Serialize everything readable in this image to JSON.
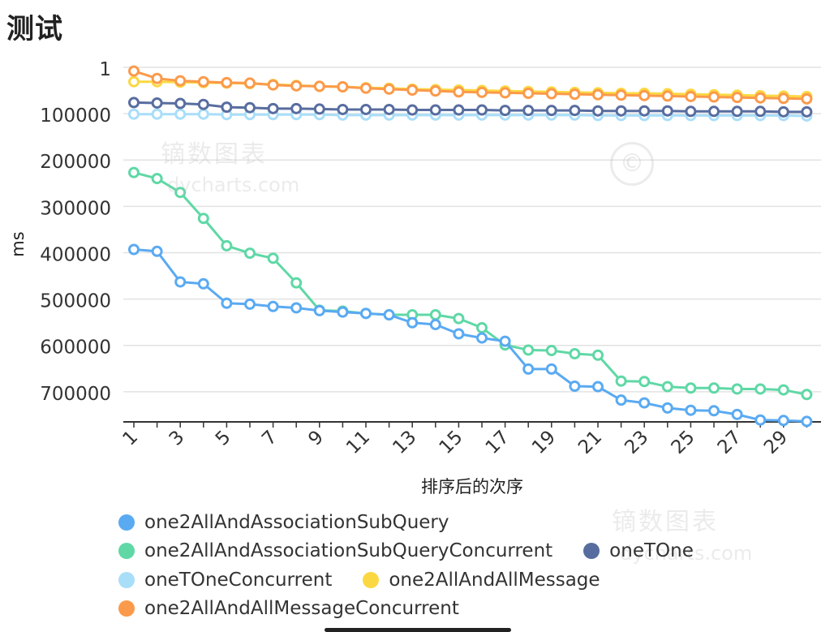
{
  "title": "测试",
  "watermark": {
    "text": "镝数图表",
    "sub": "dycharts.com",
    "copyright": "©"
  },
  "chart_data": {
    "type": "line",
    "title": "测试",
    "xlabel": "排序后的次序",
    "ylabel": "ms",
    "y_inverted": true,
    "ylim": [
      1,
      765000
    ],
    "yticks": [
      1,
      100000,
      200000,
      300000,
      400000,
      500000,
      600000,
      700000
    ],
    "ytick_labels": [
      "1",
      "100000",
      "200000",
      "300000",
      "400000",
      "500000",
      "600000",
      "700000"
    ],
    "x": [
      1,
      2,
      3,
      4,
      5,
      6,
      7,
      8,
      9,
      10,
      11,
      12,
      13,
      14,
      15,
      16,
      17,
      18,
      19,
      20,
      21,
      22,
      23,
      24,
      25,
      26,
      27,
      28,
      29,
      30
    ],
    "xtick_labels": [
      "1",
      "3",
      "5",
      "7",
      "9",
      "11",
      "13",
      "15",
      "17",
      "19",
      "21",
      "23",
      "25",
      "27",
      "29"
    ],
    "grid": true,
    "legend_position": "bottom-left",
    "series": [
      {
        "name": "one2AllAndAssociationSubQuery",
        "color": "#5aaaf2",
        "values": [
          393000,
          397000,
          463000,
          467000,
          509000,
          511000,
          516000,
          519000,
          525000,
          528000,
          531000,
          534000,
          551000,
          555000,
          575000,
          584000,
          591000,
          651000,
          651000,
          688000,
          689000,
          718000,
          724000,
          735000,
          740000,
          741000,
          749000,
          761000,
          762000,
          764000
        ]
      },
      {
        "name": "one2AllAndAssociationSubQueryConcurrent",
        "color": "#5fd8a6",
        "values": [
          227000,
          240000,
          270000,
          326000,
          385000,
          401000,
          412000,
          465000,
          524000,
          526000,
          531000,
          534000,
          534000,
          534000,
          542000,
          562000,
          599000,
          610000,
          611000,
          618000,
          621000,
          677000,
          678000,
          689000,
          692000,
          692000,
          694000,
          694000,
          696000,
          706000
        ]
      },
      {
        "name": "oneTOne",
        "color": "#586d9f",
        "values": [
          76000,
          77000,
          78000,
          80000,
          86000,
          87000,
          89000,
          89000,
          90000,
          91000,
          91000,
          91000,
          92000,
          92000,
          92000,
          92000,
          93000,
          93000,
          93000,
          93000,
          94000,
          94000,
          94000,
          94000,
          95000,
          95000,
          95000,
          95000,
          96000,
          96000
        ]
      },
      {
        "name": "oneTOneConcurrent",
        "color": "#a9def9",
        "values": [
          101000,
          101000,
          101000,
          101000,
          102000,
          102000,
          102000,
          102000,
          102000,
          103000,
          103000,
          103000,
          103000,
          103000,
          103000,
          103000,
          103000,
          103000,
          103000,
          103000,
          104000,
          104000,
          104000,
          104000,
          104000,
          104000,
          104000,
          104000,
          104000,
          105000
        ]
      },
      {
        "name": "one2AllAndAllMessage",
        "color": "#fbd842",
        "values": [
          31000,
          31000,
          32000,
          33000,
          34000,
          35000,
          37000,
          39000,
          41000,
          42000,
          44000,
          45000,
          47000,
          48000,
          49000,
          50000,
          51000,
          52000,
          53000,
          54000,
          55000,
          56000,
          56000,
          57000,
          58000,
          59000,
          60000,
          61000,
          62000,
          63000
        ]
      },
      {
        "name": "one2AllAndAllMessageConcurrent",
        "color": "#fb9a4a",
        "values": [
          8000,
          24000,
          29000,
          31000,
          33000,
          34000,
          38000,
          40000,
          41000,
          42000,
          45000,
          47000,
          49000,
          51000,
          53000,
          54000,
          55000,
          56000,
          57000,
          58000,
          59000,
          60000,
          61000,
          62000,
          63000,
          64000,
          65000,
          66000,
          67000,
          68000
        ]
      }
    ]
  },
  "legend_rows": [
    [
      0
    ],
    [
      1,
      2
    ],
    [
      3,
      4
    ],
    [
      5
    ]
  ]
}
